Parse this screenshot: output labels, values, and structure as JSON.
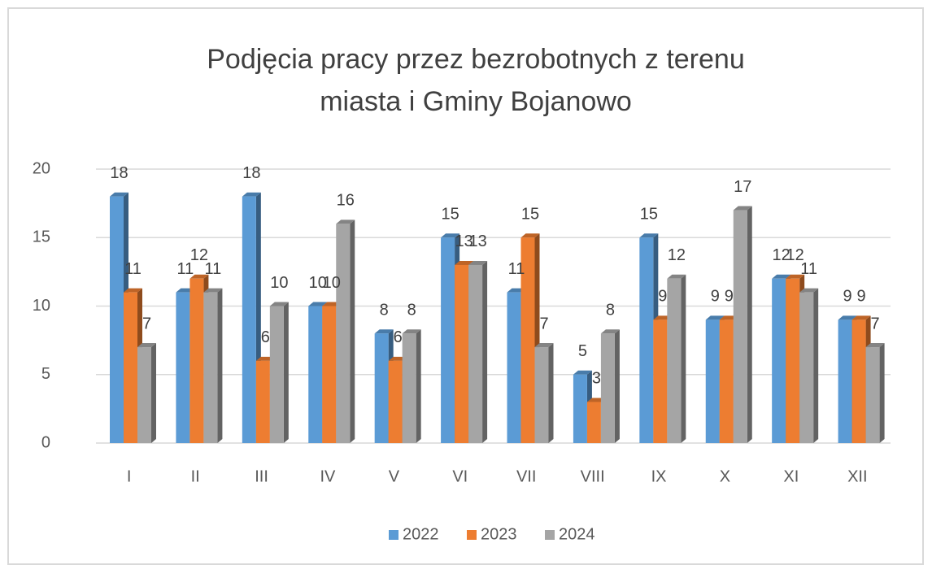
{
  "chart_data": {
    "type": "bar3d",
    "title": [
      "Podjęcia pracy przez bezrobotnych z terenu",
      "miasta i Gminy Bojanowo"
    ],
    "categories": [
      "I",
      "II",
      "III",
      "IV",
      "V",
      "VI",
      "VII",
      "VIII",
      "IX",
      "X",
      "XI",
      "XII"
    ],
    "series": [
      {
        "name": "2022",
        "color": "#5b9bd5",
        "values": [
          18,
          11,
          18,
          10,
          8,
          15,
          11,
          5,
          15,
          9,
          12,
          9
        ]
      },
      {
        "name": "2023",
        "color": "#ed7d31",
        "values": [
          11,
          12,
          6,
          10,
          6,
          13,
          15,
          3,
          9,
          9,
          12,
          9
        ]
      },
      {
        "name": "2024",
        "color": "#a5a5a5",
        "values": [
          7,
          11,
          10,
          16,
          8,
          13,
          7,
          8,
          12,
          17,
          11,
          7
        ]
      }
    ],
    "ylim": [
      0,
      20
    ],
    "yticks": [
      0,
      5,
      10,
      15,
      20
    ],
    "grid": true,
    "legend": "bottom"
  }
}
